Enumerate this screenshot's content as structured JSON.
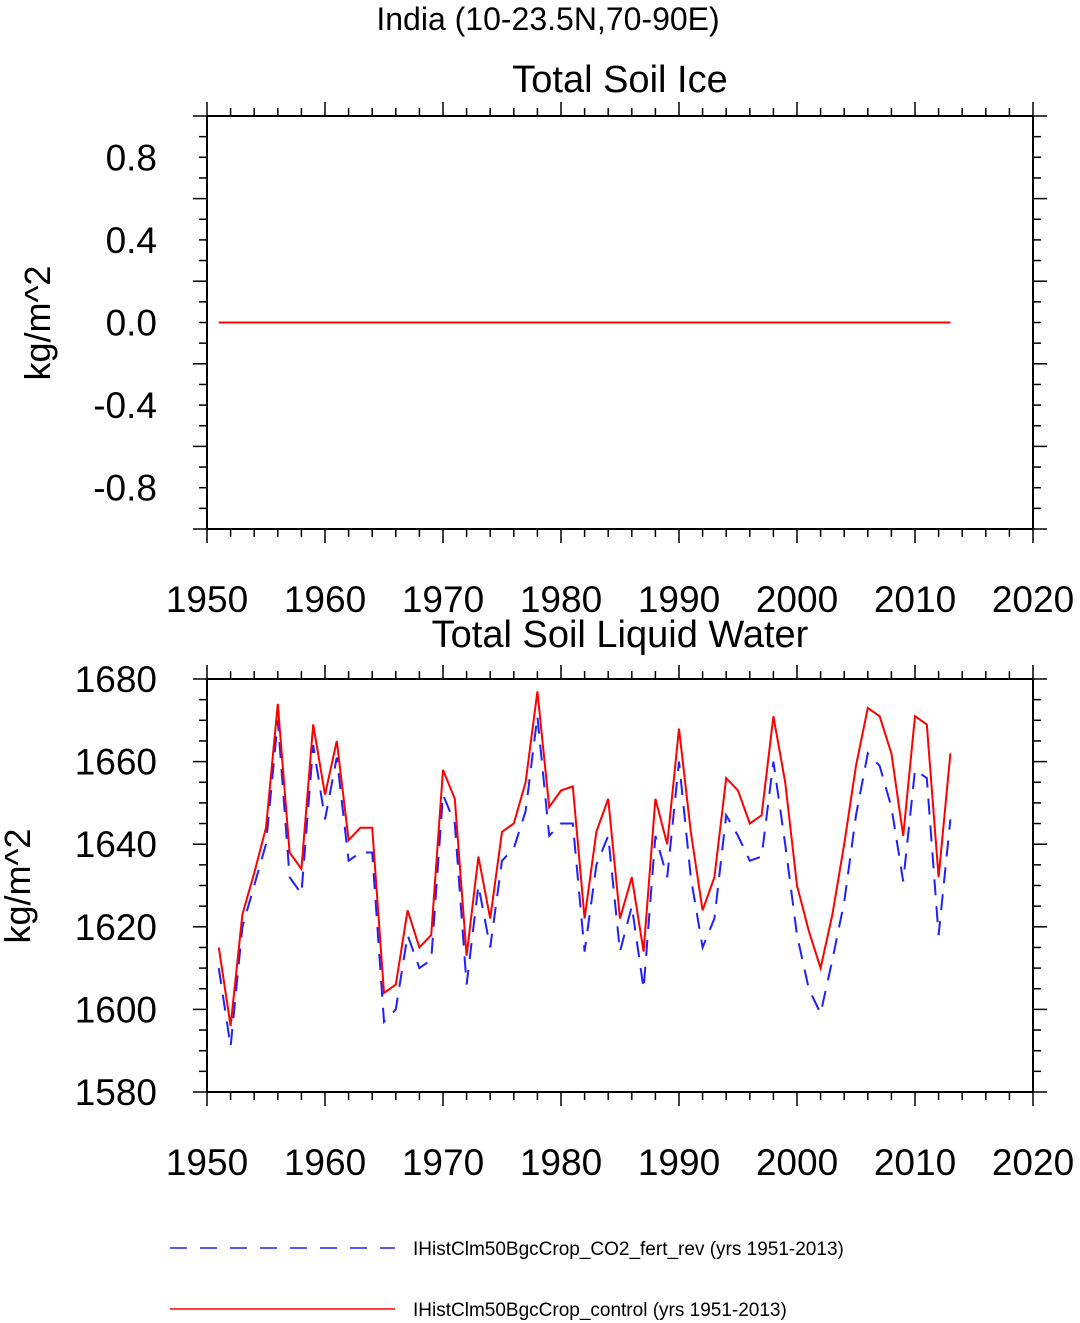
{
  "suptitle": "India (10-23.5N,70-90E)",
  "legend": {
    "entries": [
      {
        "label": "IHistClm50BgcCrop_CO2_fert_rev (yrs 1951-2013)",
        "color": "#1f1fff",
        "style": "dashed"
      },
      {
        "label": "IHistClm50BgcCrop_control (yrs 1951-2013)",
        "color": "#ff0000",
        "style": "solid"
      }
    ]
  },
  "chart_data": [
    {
      "type": "line",
      "title": "Total Soil Ice",
      "ylabel": "kg/m^2",
      "xlabel": "",
      "xlim": [
        1950,
        2020
      ],
      "ylim": [
        -1.0,
        1.0
      ],
      "xticks": [
        "1950",
        "1960",
        "1970",
        "1980",
        "1990",
        "2000",
        "2010",
        "2020"
      ],
      "yticks": [
        "0.8",
        "0.4",
        "0.0",
        "-0.4",
        "-0.8"
      ],
      "x": [
        1951,
        2013
      ],
      "series": [
        {
          "name": "IHistClm50BgcCrop_CO2_fert_rev (yrs 1951-2013)",
          "color": "#1f1fff",
          "style": "dashed",
          "values": [
            0.0,
            0.0
          ]
        },
        {
          "name": "IHistClm50BgcCrop_control (yrs 1951-2013)",
          "color": "#ff0000",
          "style": "solid",
          "values": [
            0.0,
            0.0
          ]
        }
      ]
    },
    {
      "type": "line",
      "title": "Total Soil Liquid Water",
      "ylabel": "kg/m^2",
      "xlabel": "",
      "xlim": [
        1950,
        2020
      ],
      "ylim": [
        1580,
        1680
      ],
      "xticks": [
        "1950",
        "1960",
        "1970",
        "1980",
        "1990",
        "2000",
        "2010",
        "2020"
      ],
      "yticks": [
        "1680",
        "1660",
        "1640",
        "1620",
        "1600",
        "1580"
      ],
      "x": [
        1951,
        1952,
        1953,
        1954,
        1955,
        1956,
        1957,
        1958,
        1959,
        1960,
        1961,
        1962,
        1963,
        1964,
        1965,
        1966,
        1967,
        1968,
        1969,
        1970,
        1971,
        1972,
        1973,
        1974,
        1975,
        1976,
        1977,
        1978,
        1979,
        1980,
        1981,
        1982,
        1983,
        1984,
        1985,
        1986,
        1987,
        1988,
        1989,
        1990,
        1991,
        1992,
        1993,
        1994,
        1995,
        1996,
        1997,
        1998,
        1999,
        2000,
        2001,
        2002,
        2003,
        2004,
        2005,
        2006,
        2007,
        2008,
        2009,
        2010,
        2011,
        2012,
        2013
      ],
      "series": [
        {
          "name": "IHistClm50BgcCrop_CO2_fert_rev (yrs 1951-2013)",
          "color": "#1f1fff",
          "style": "dashed",
          "values": [
            1610,
            1591,
            1620,
            1630,
            1640,
            1670,
            1632,
            1628,
            1664,
            1646,
            1661,
            1636,
            1638,
            1638,
            1597,
            1600,
            1618,
            1610,
            1612,
            1652,
            1645,
            1606,
            1630,
            1615,
            1636,
            1639,
            1648,
            1671,
            1642,
            1645,
            1645,
            1614,
            1635,
            1642,
            1614,
            1625,
            1605,
            1642,
            1632,
            1660,
            1632,
            1615,
            1622,
            1647,
            1642,
            1636,
            1637,
            1660,
            1640,
            1618,
            1605,
            1599,
            1612,
            1626,
            1647,
            1662,
            1659,
            1649,
            1631,
            1658,
            1656,
            1618,
            1646
          ]
        },
        {
          "name": "IHistClm50BgcCrop_control (yrs 1951-2013)",
          "color": "#ff0000",
          "style": "solid",
          "values": [
            1615,
            1596,
            1623,
            1633,
            1644,
            1674,
            1638,
            1634,
            1669,
            1652,
            1665,
            1641,
            1644,
            1644,
            1604,
            1606,
            1624,
            1615,
            1618,
            1658,
            1651,
            1613,
            1637,
            1622,
            1643,
            1645,
            1655,
            1677,
            1649,
            1653,
            1654,
            1622,
            1643,
            1651,
            1622,
            1632,
            1614,
            1651,
            1640,
            1668,
            1643,
            1624,
            1632,
            1656,
            1653,
            1645,
            1647,
            1671,
            1655,
            1630,
            1619,
            1610,
            1623,
            1640,
            1659,
            1673,
            1671,
            1662,
            1642,
            1671,
            1669,
            1632,
            1662
          ]
        }
      ]
    }
  ]
}
